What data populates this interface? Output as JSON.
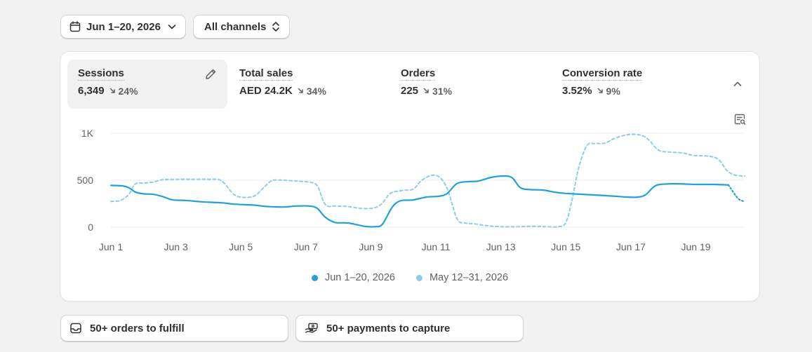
{
  "filters": {
    "date_range": "Jun 1–20, 2026",
    "channel": "All channels"
  },
  "metrics": [
    {
      "label": "Sessions",
      "value": "6,349",
      "change": "24%",
      "direction": "down",
      "active": true
    },
    {
      "label": "Total sales",
      "value": "AED 24.2K",
      "change": "34%",
      "direction": "down",
      "active": false
    },
    {
      "label": "Orders",
      "value": "225",
      "change": "31%",
      "direction": "down",
      "active": false
    },
    {
      "label": "Conversion rate",
      "value": "3.52%",
      "change": "9%",
      "direction": "down",
      "active": false
    }
  ],
  "icons": {
    "date": "calendar-icon",
    "channel": "select-arrows-icon",
    "edit": "pencil-icon",
    "collapse": "chevron-up-icon",
    "chart_options": "chart-search-icon",
    "trend": "arrow-down-right-icon",
    "fulfill": "inbox-icon",
    "capture": "hand-money-icon"
  },
  "colors": {
    "current": "#1fa1dd",
    "previous": "#8ccdee"
  },
  "chart_data": {
    "type": "line",
    "yticks": [
      "1K",
      "500",
      "0"
    ],
    "ylim": [
      0,
      1000
    ],
    "xlim": [
      1,
      20.5
    ],
    "xticks": [
      "Jun 1",
      "Jun 3",
      "Jun 5",
      "Jun 7",
      "Jun 9",
      "Jun 11",
      "Jun 13",
      "Jun 15",
      "Jun 17",
      "Jun 19"
    ],
    "series": [
      {
        "name": "Jun 1–20, 2026",
        "dashed": false,
        "dotted_tail_from_x": 20,
        "points": [
          [
            1,
            445
          ],
          [
            1.35,
            440
          ],
          [
            1.55,
            420
          ],
          [
            1.75,
            375
          ],
          [
            2,
            355
          ],
          [
            2.3,
            350
          ],
          [
            2.6,
            325
          ],
          [
            2.9,
            290
          ],
          [
            3.3,
            285
          ],
          [
            3.8,
            270
          ],
          [
            4.4,
            260
          ],
          [
            4.8,
            245
          ],
          [
            5.4,
            235
          ],
          [
            5.8,
            220
          ],
          [
            6.3,
            215
          ],
          [
            6.7,
            225
          ],
          [
            7.1,
            225
          ],
          [
            7.35,
            200
          ],
          [
            7.6,
            105
          ],
          [
            7.9,
            50
          ],
          [
            8.3,
            45
          ],
          [
            8.8,
            10
          ],
          [
            9.1,
            5
          ],
          [
            9.35,
            30
          ],
          [
            9.65,
            210
          ],
          [
            9.9,
            280
          ],
          [
            10.3,
            290
          ],
          [
            10.7,
            320
          ],
          [
            11.1,
            330
          ],
          [
            11.35,
            360
          ],
          [
            11.65,
            465
          ],
          [
            12,
            485
          ],
          [
            12.3,
            490
          ],
          [
            12.7,
            530
          ],
          [
            13.1,
            545
          ],
          [
            13.35,
            525
          ],
          [
            13.6,
            420
          ],
          [
            13.9,
            400
          ],
          [
            14.3,
            395
          ],
          [
            14.7,
            370
          ],
          [
            15,
            360
          ],
          [
            15.5,
            350
          ],
          [
            16,
            340
          ],
          [
            16.5,
            330
          ],
          [
            16.9,
            320
          ],
          [
            17.2,
            320
          ],
          [
            17.45,
            345
          ],
          [
            17.75,
            440
          ],
          [
            18.1,
            460
          ],
          [
            18.6,
            460
          ],
          [
            19,
            455
          ],
          [
            19.5,
            455
          ],
          [
            20,
            450
          ],
          [
            20.3,
            305
          ],
          [
            20.5,
            275
          ]
        ]
      },
      {
        "name": "May 12–31, 2026",
        "dashed": true,
        "points": [
          [
            1,
            275
          ],
          [
            1.3,
            285
          ],
          [
            1.55,
            350
          ],
          [
            1.75,
            460
          ],
          [
            2,
            470
          ],
          [
            2.3,
            480
          ],
          [
            2.6,
            505
          ],
          [
            3,
            510
          ],
          [
            3.5,
            510
          ],
          [
            4,
            510
          ],
          [
            4.4,
            495
          ],
          [
            4.75,
            360
          ],
          [
            5,
            320
          ],
          [
            5.4,
            330
          ],
          [
            5.7,
            420
          ],
          [
            5.95,
            495
          ],
          [
            6.3,
            500
          ],
          [
            6.7,
            490
          ],
          [
            7.1,
            480
          ],
          [
            7.35,
            440
          ],
          [
            7.6,
            240
          ],
          [
            7.9,
            225
          ],
          [
            8.3,
            220
          ],
          [
            8.7,
            200
          ],
          [
            9.1,
            205
          ],
          [
            9.35,
            255
          ],
          [
            9.6,
            360
          ],
          [
            9.95,
            390
          ],
          [
            10.3,
            405
          ],
          [
            10.55,
            495
          ],
          [
            10.85,
            550
          ],
          [
            11.1,
            535
          ],
          [
            11.35,
            410
          ],
          [
            11.65,
            90
          ],
          [
            11.9,
            45
          ],
          [
            12.2,
            35
          ],
          [
            12.6,
            15
          ],
          [
            13,
            5
          ],
          [
            13.5,
            5
          ],
          [
            14,
            10
          ],
          [
            14.4,
            5
          ],
          [
            14.75,
            5
          ],
          [
            15,
            50
          ],
          [
            15.2,
            310
          ],
          [
            15.4,
            640
          ],
          [
            15.65,
            870
          ],
          [
            15.9,
            890
          ],
          [
            16.2,
            895
          ],
          [
            16.5,
            945
          ],
          [
            16.9,
            985
          ],
          [
            17.3,
            980
          ],
          [
            17.55,
            930
          ],
          [
            17.85,
            820
          ],
          [
            18.2,
            800
          ],
          [
            18.6,
            790
          ],
          [
            18.9,
            765
          ],
          [
            19.4,
            755
          ],
          [
            19.7,
            720
          ],
          [
            19.95,
            605
          ],
          [
            20.2,
            555
          ],
          [
            20.5,
            545
          ]
        ]
      }
    ]
  },
  "tasks": [
    {
      "label": "50+ orders to fulfill"
    },
    {
      "label": "50+ payments to capture"
    }
  ]
}
